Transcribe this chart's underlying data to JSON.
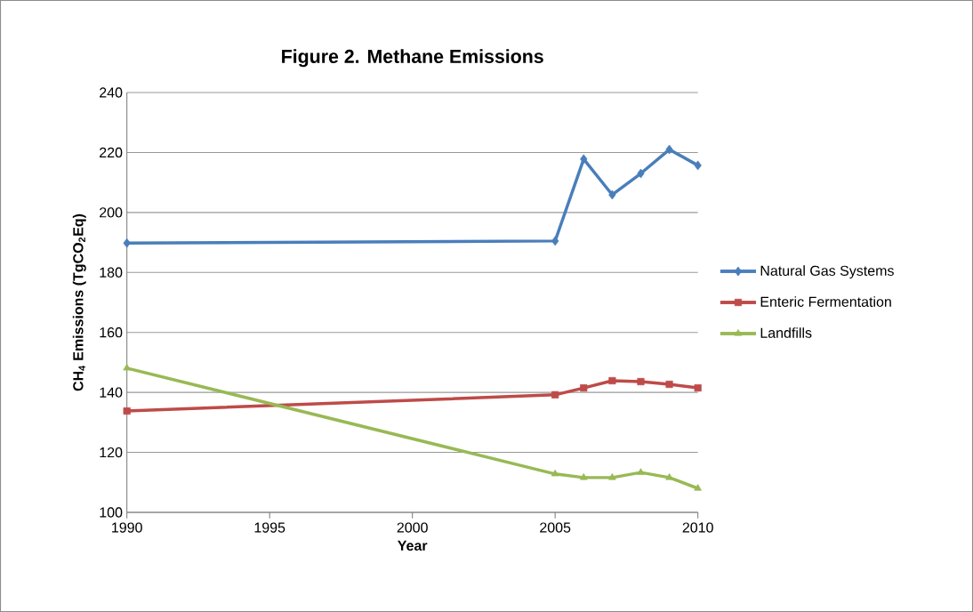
{
  "chart_data": {
    "type": "line",
    "title": "Figure 2. Methane Emissions",
    "xlabel": "Year",
    "ylabel": "CH$_{4}$ Emissions (TgCO$_{2}$Eq)",
    "x": [
      1990,
      2005,
      2006,
      2007,
      2008,
      2009,
      2010
    ],
    "series": [
      {
        "name": "Natural Gas Systems",
        "color": "#4a7ebb",
        "marker": "diamond",
        "values": [
          189.8,
          190.5,
          217.8,
          205.9,
          213.0,
          221.0,
          215.7
        ]
      },
      {
        "name": "Enteric Fermentation",
        "color": "#be4b48",
        "marker": "square",
        "values": [
          133.8,
          139.2,
          141.5,
          143.9,
          143.6,
          142.7,
          141.5
        ]
      },
      {
        "name": "Landfills",
        "color": "#98b954",
        "marker": "triangle",
        "values": [
          148.1,
          112.8,
          111.6,
          111.6,
          113.3,
          111.6,
          108.0
        ]
      }
    ],
    "xlim": [
      1990,
      2010
    ],
    "xticks": [
      1990,
      1995,
      2000,
      2005,
      2010
    ],
    "ylim": [
      100,
      240
    ],
    "yticks": [
      100,
      120,
      140,
      160,
      180,
      200,
      220,
      240
    ],
    "grid": "y",
    "legend": "right",
    "line_style": "solid"
  }
}
